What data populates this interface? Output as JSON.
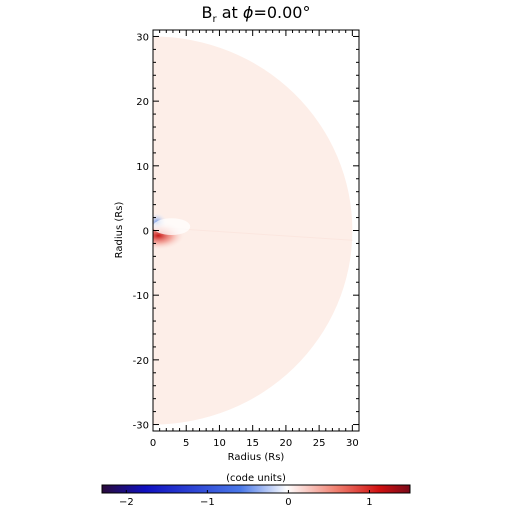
{
  "chart_data": {
    "type": "heatmap",
    "title": {
      "base": "B",
      "sub": "r",
      "middle": " at ",
      "phi": "ϕ",
      "value": "=0.00°"
    },
    "xlabel": "Radius (Rs)",
    "ylabel": "Radius (Rs)",
    "xlim": [
      0,
      31
    ],
    "ylim": [
      -31,
      31
    ],
    "xticks": [
      0,
      5,
      10,
      15,
      20,
      25,
      30
    ],
    "yticks": [
      -30,
      -20,
      -10,
      0,
      10,
      20,
      30
    ],
    "domain_radius": 30,
    "background_value": 0.15,
    "colorbar": {
      "label": "(code units)",
      "range": [
        -2.3,
        1.5
      ],
      "ticks": [
        -2,
        -1,
        0,
        1
      ],
      "colors": [
        "#2a0a3a",
        "#1010c0",
        "#4a78e8",
        "#ffffff",
        "#f08070",
        "#d01010",
        "#7a0a1a"
      ],
      "stops": [
        0,
        0.14,
        0.45,
        0.6,
        0.76,
        0.9,
        1
      ]
    },
    "features": [
      {
        "name": "positive-lobe",
        "x": 0.8,
        "y": -0.8,
        "value": 1.2
      },
      {
        "name": "negative-lobe",
        "x": 0.6,
        "y": 1.2,
        "value": -0.9
      }
    ]
  }
}
